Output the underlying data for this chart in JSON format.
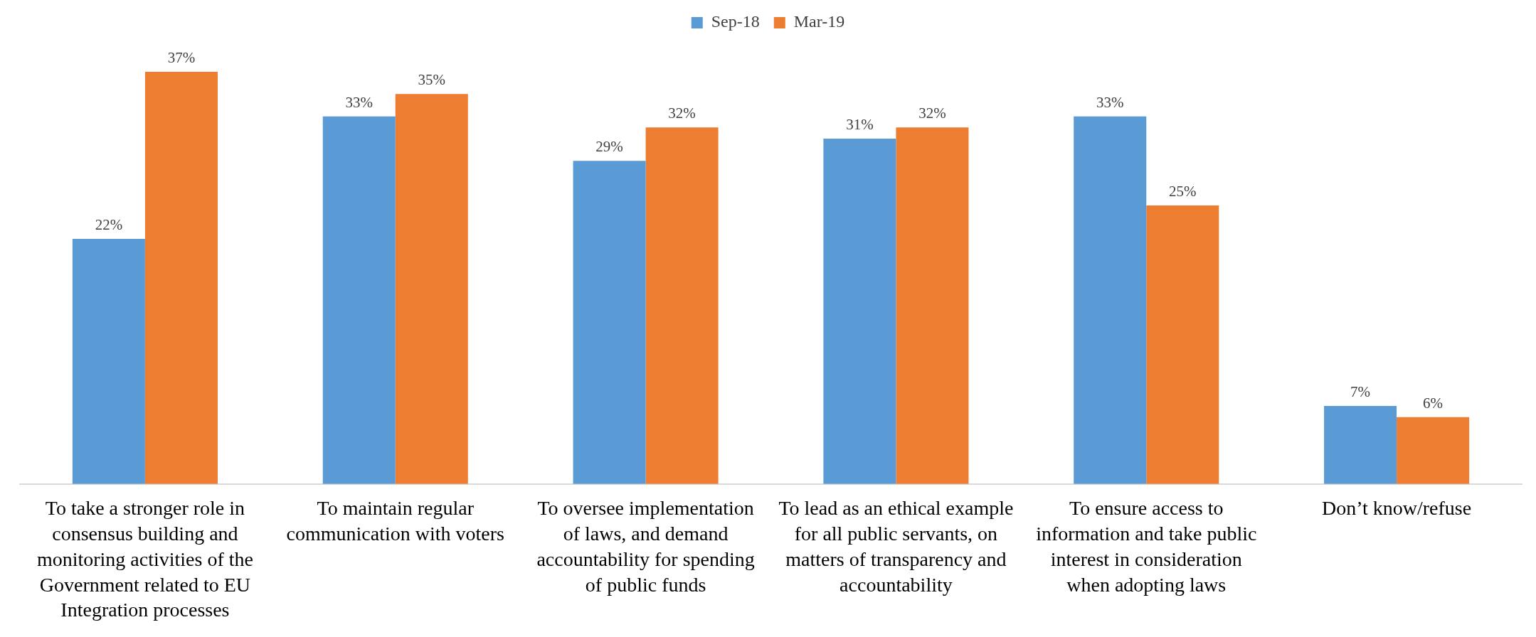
{
  "chart_data": {
    "type": "bar",
    "categories": [
      "To take a stronger role in consensus building and monitoring activities of the Government related to EU Integration processes",
      "To maintain regular communication with voters",
      "To oversee implementation of laws, and demand accountability for spending of public funds",
      "To lead as an ethical example for all public servants, on matters of transparency and accountability",
      "To ensure access to information and take public interest in consideration when adopting laws",
      "Don’t know/refuse"
    ],
    "series": [
      {
        "name": "Sep-18",
        "color": "#5b9bd5",
        "values": [
          22,
          33,
          29,
          31,
          33,
          7
        ],
        "value_labels": [
          "22%",
          "33%",
          "29%",
          "31%",
          "33%",
          "7%"
        ]
      },
      {
        "name": "Mar-19",
        "color": "#ed7d31",
        "values": [
          37,
          35,
          32,
          32,
          25,
          6
        ],
        "value_labels": [
          "37%",
          "35%",
          "32%",
          "32%",
          "25%",
          "6%"
        ]
      }
    ],
    "legend": "top",
    "grid": false
  }
}
